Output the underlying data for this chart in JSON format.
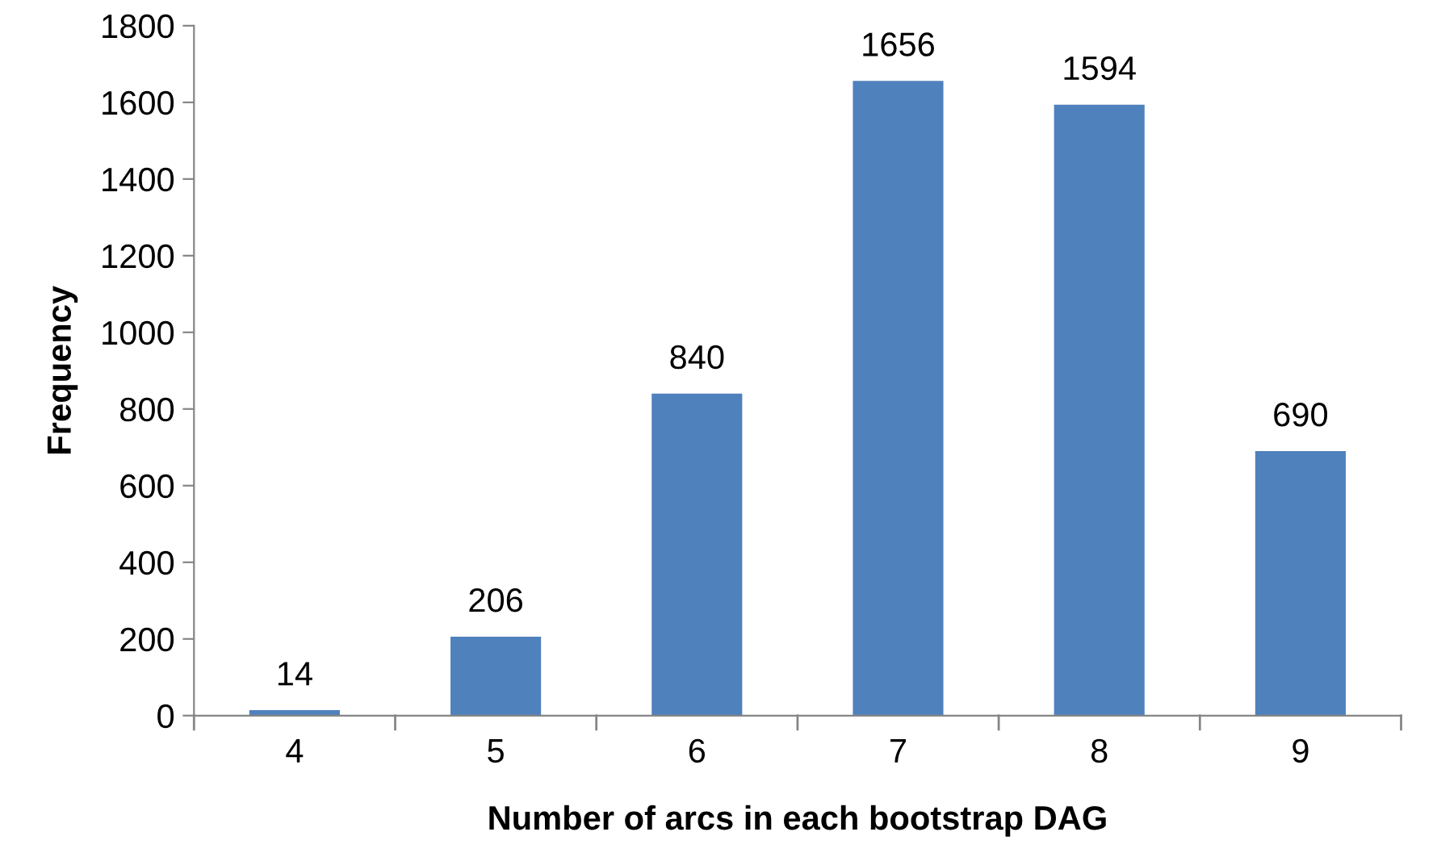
{
  "chart_data": {
    "type": "bar",
    "xlabel": "Number of arcs in each bootstrap DAG",
    "ylabel": "Frequency",
    "categories": [
      "4",
      "5",
      "6",
      "7",
      "8",
      "9"
    ],
    "values": [
      14,
      206,
      840,
      1656,
      1594,
      690
    ],
    "color": "#4f81bd",
    "ylim": [
      0,
      1800
    ],
    "yticks": [
      0,
      200,
      400,
      600,
      800,
      1000,
      1200,
      1400,
      1600,
      1800
    ],
    "data_labels": true,
    "grid": false,
    "legend": false
  }
}
